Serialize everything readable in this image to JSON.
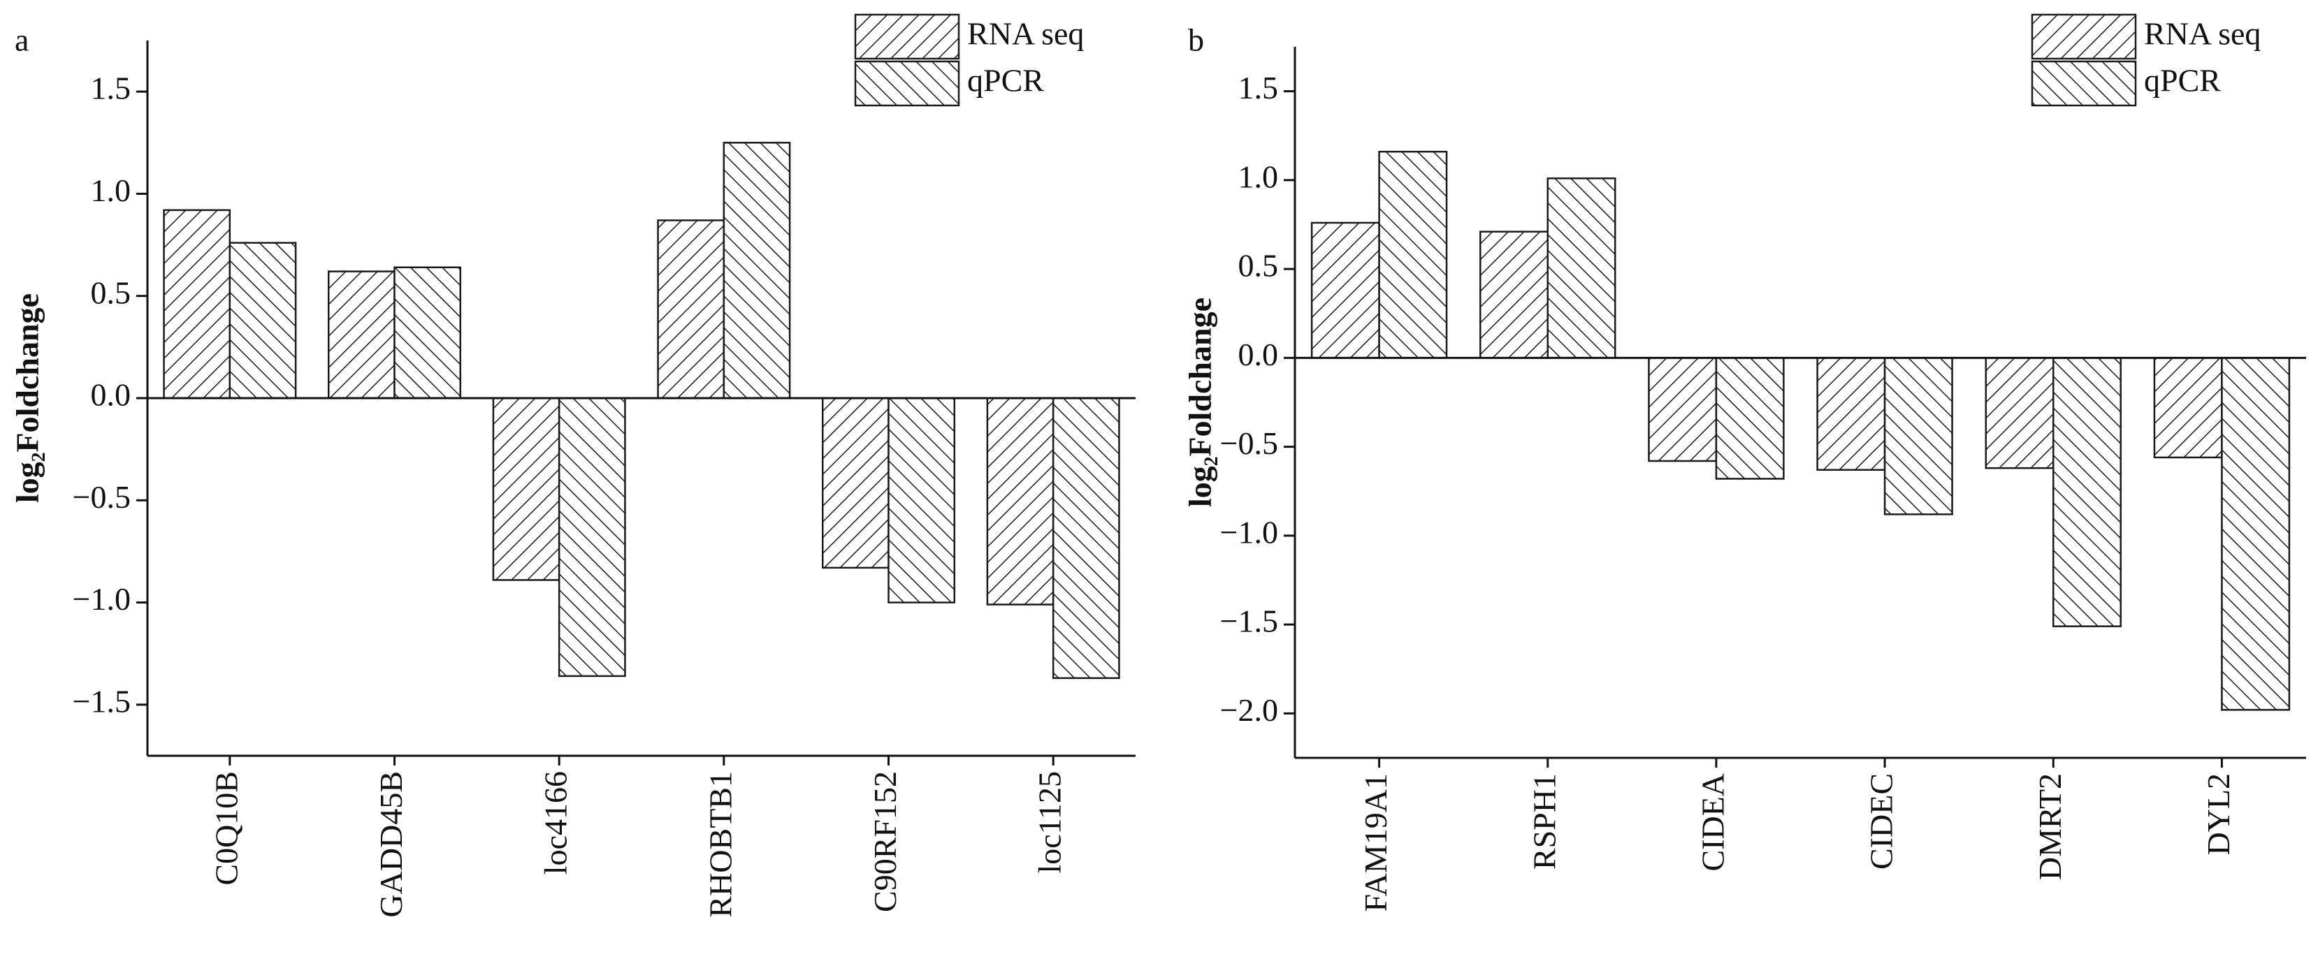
{
  "chart_data": [
    {
      "type": "bar",
      "panel_label": "a",
      "ylabel": "log₂Foldchange",
      "categories": [
        "C0Q10B",
        "GADD45B",
        "loc4166",
        "RHOBTB1",
        "C90RF152",
        "loc1125"
      ],
      "series": [
        {
          "name": "RNA seq",
          "color": "#1a1a1a",
          "hatch": "forward",
          "values": [
            0.92,
            0.62,
            -0.89,
            0.87,
            -0.83,
            -1.01
          ]
        },
        {
          "name": "qPCR",
          "color": "#1a1a1a",
          "hatch": "backward",
          "values": [
            0.76,
            0.64,
            -1.36,
            1.25,
            -1.0,
            -1.37
          ]
        }
      ],
      "ylim": [
        -1.75,
        1.75
      ],
      "yticks": [
        {
          "value": 1.5,
          "label": "1.5"
        },
        {
          "value": 1,
          "label": "1.0"
        },
        {
          "value": 0.5,
          "label": "0.5"
        },
        {
          "value": 0,
          "label": "0.0"
        },
        {
          "value": -0.5,
          "label": "−0.5"
        },
        {
          "value": -1,
          "label": "−1.0"
        },
        {
          "value": -1.5,
          "label": "−1.5"
        }
      ],
      "legend": "upper right"
    },
    {
      "type": "bar",
      "panel_label": "b",
      "ylabel": "log₂Foldchange",
      "categories": [
        "FAM19A1",
        "RSPH1",
        "CIDEA",
        "CIDEC",
        "DMRT2",
        "DYL2"
      ],
      "series": [
        {
          "name": "RNA seq",
          "color": "#1a1a1a",
          "hatch": "forward",
          "values": [
            0.76,
            0.71,
            -0.58,
            -0.63,
            -0.62,
            -0.56
          ]
        },
        {
          "name": "qPCR",
          "color": "#1a1a1a",
          "hatch": "backward",
          "values": [
            1.16,
            1.01,
            -0.68,
            -0.88,
            -1.51,
            -1.98
          ]
        }
      ],
      "ylim": [
        -2.25,
        1.75
      ],
      "yticks": [
        {
          "value": 1.5,
          "label": "1.5"
        },
        {
          "value": 1,
          "label": "1.0"
        },
        {
          "value": 0.5,
          "label": "0.5"
        },
        {
          "value": 0,
          "label": "0.0"
        },
        {
          "value": -0.5,
          "label": "−0.5"
        },
        {
          "value": -1,
          "label": "−1.0"
        },
        {
          "value": -1.5,
          "label": "−1.5"
        },
        {
          "value": -2,
          "label": "−2.0"
        }
      ],
      "legend": "upper right"
    }
  ]
}
